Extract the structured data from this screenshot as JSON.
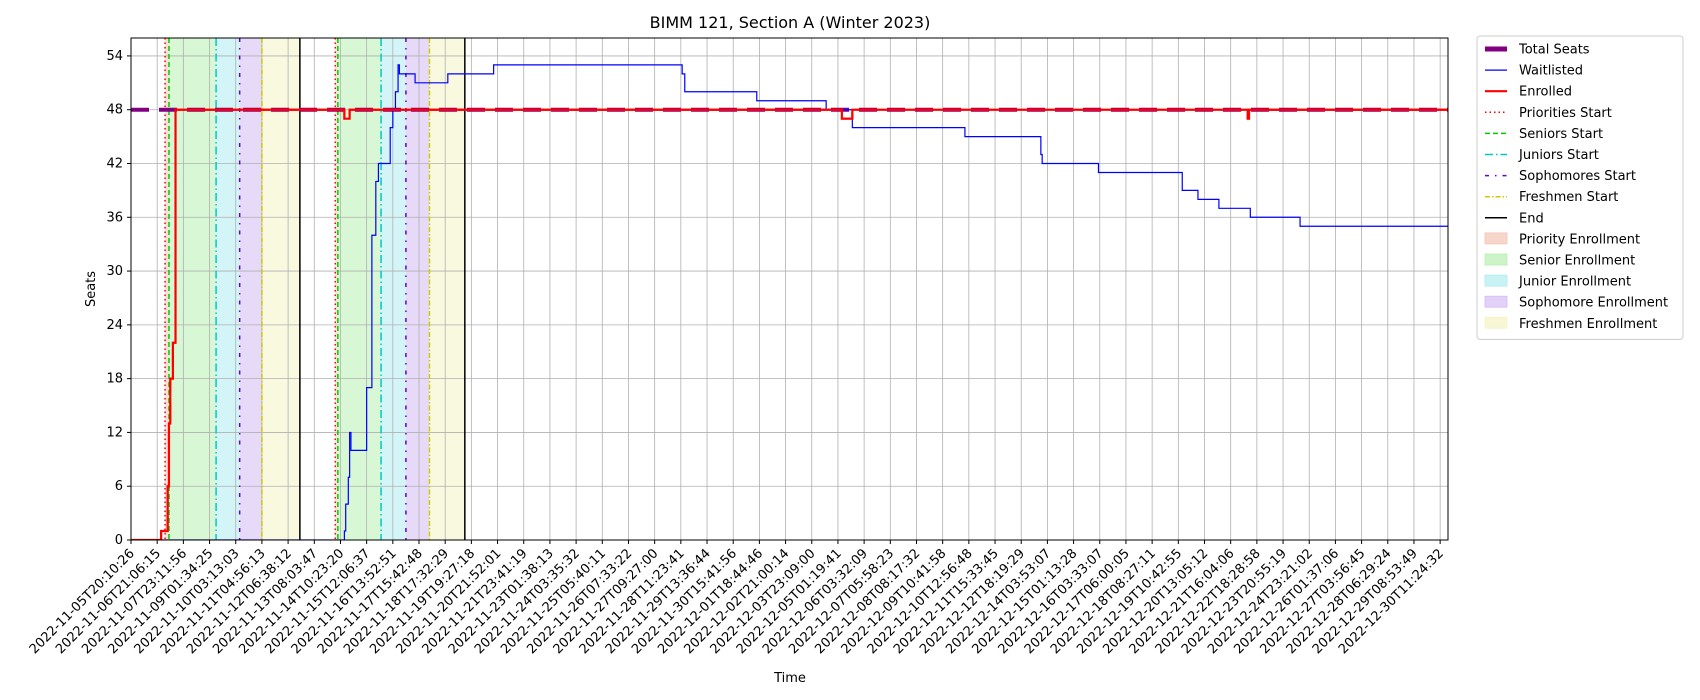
{
  "chart_data": {
    "type": "line",
    "title": "BIMM 121, Section A (Winter 2023)",
    "xlabel": "Time",
    "ylabel": "Seats",
    "ylim": [
      0,
      56
    ],
    "yticks": [
      0,
      6,
      12,
      18,
      24,
      30,
      36,
      42,
      48,
      54
    ],
    "grid": true,
    "legend_position": "outside-upper-right",
    "xtick_labels": [
      "2022-11-05T20:10:26",
      "2022-11-06T21:06:15",
      "2022-11-07T23:11:56",
      "2022-11-09T01:34:25",
      "2022-11-10T03:13:03",
      "2022-11-11T04:56:13",
      "2022-11-12T06:38:12",
      "2022-11-13T08:03:47",
      "2022-11-14T10:23:20",
      "2022-11-15T12:06:37",
      "2022-11-16T13:52:51",
      "2022-11-17T15:42:48",
      "2022-11-18T17:32:29",
      "2022-11-19T19:27:18",
      "2022-11-20T21:52:01",
      "2022-11-21T23:41:19",
      "2022-11-23T01:38:13",
      "2022-11-24T03:35:32",
      "2022-11-25T05:40:11",
      "2022-11-26T07:33:22",
      "2022-11-27T09:27:00",
      "2022-11-28T11:23:41",
      "2022-11-29T13:36:44",
      "2022-11-30T15:41:56",
      "2022-12-01T18:44:46",
      "2022-12-02T21:00:14",
      "2022-12-03T23:09:00",
      "2022-12-05T01:19:41",
      "2022-12-06T03:32:09",
      "2022-12-07T05:58:23",
      "2022-12-08T08:17:32",
      "2022-12-09T10:41:58",
      "2022-12-10T12:56:48",
      "2022-12-11T15:33:45",
      "2022-12-12T18:19:29",
      "2022-12-14T03:53:07",
      "2022-12-15T01:13:28",
      "2022-12-16T03:33:07",
      "2022-12-17T06:00:05",
      "2022-12-18T08:27:11",
      "2022-12-19T10:42:55",
      "2022-12-20T13:05:12",
      "2022-12-21T16:04:06",
      "2022-12-22T18:28:58",
      "2022-12-23T20:55:19",
      "2022-12-24T23:21:02",
      "2022-12-26T01:37:06",
      "2022-12-27T03:56:45",
      "2022-12-28T06:29:24",
      "2022-12-29T08:53:49",
      "2022-12-30T11:24:32"
    ],
    "x_range": [
      0,
      50.3
    ],
    "series": [
      {
        "name": "Total Seats",
        "color": "#800080",
        "points": [
          [
            0,
            48
          ],
          [
            0.6,
            48
          ],
          [
            1.1,
            48
          ],
          [
            50.3,
            48
          ]
        ]
      },
      {
        "name": "Waitlisted",
        "color": "#0000ff",
        "points": [
          [
            0,
            0
          ],
          [
            8.1,
            0
          ],
          [
            8.15,
            1
          ],
          [
            8.2,
            4
          ],
          [
            8.3,
            7
          ],
          [
            8.35,
            12
          ],
          [
            8.4,
            10
          ],
          [
            8.85,
            10
          ],
          [
            9.0,
            17
          ],
          [
            9.2,
            34
          ],
          [
            9.35,
            40
          ],
          [
            9.45,
            42
          ],
          [
            9.8,
            42
          ],
          [
            9.9,
            46
          ],
          [
            10.0,
            48
          ],
          [
            10.1,
            50
          ],
          [
            10.2,
            53
          ],
          [
            10.25,
            52
          ],
          [
            10.8,
            52
          ],
          [
            10.85,
            51
          ],
          [
            12.0,
            51
          ],
          [
            12.1,
            52
          ],
          [
            13.8,
            52
          ],
          [
            13.85,
            53
          ],
          [
            21.0,
            53
          ],
          [
            21.05,
            52
          ],
          [
            21.15,
            50
          ],
          [
            23.8,
            50
          ],
          [
            23.9,
            49
          ],
          [
            26.5,
            49
          ],
          [
            26.55,
            48
          ],
          [
            27.5,
            48
          ],
          [
            27.55,
            46
          ],
          [
            31.8,
            46
          ],
          [
            31.85,
            45
          ],
          [
            34.7,
            45
          ],
          [
            34.75,
            43
          ],
          [
            34.8,
            42
          ],
          [
            36.9,
            42
          ],
          [
            36.95,
            41
          ],
          [
            40.1,
            41
          ],
          [
            40.15,
            39
          ],
          [
            40.7,
            39
          ],
          [
            40.75,
            38
          ],
          [
            41.5,
            38
          ],
          [
            41.55,
            37
          ],
          [
            42.7,
            37
          ],
          [
            42.75,
            36
          ],
          [
            44.6,
            36
          ],
          [
            44.65,
            35
          ],
          [
            50.3,
            35
          ]
        ]
      },
      {
        "name": "Enrolled",
        "color": "#ff0000",
        "points": [
          [
            0,
            0
          ],
          [
            1.1,
            0
          ],
          [
            1.15,
            1
          ],
          [
            1.35,
            1
          ],
          [
            1.4,
            6
          ],
          [
            1.45,
            13
          ],
          [
            1.5,
            18
          ],
          [
            1.6,
            22
          ],
          [
            1.7,
            48
          ],
          [
            7.5,
            48
          ],
          [
            8.1,
            48
          ],
          [
            8.15,
            47
          ],
          [
            8.3,
            47
          ],
          [
            8.35,
            48
          ],
          [
            27.1,
            48
          ],
          [
            27.15,
            47
          ],
          [
            27.5,
            47
          ],
          [
            27.55,
            48
          ],
          [
            42.6,
            48
          ],
          [
            42.65,
            47
          ],
          [
            42.7,
            48
          ],
          [
            50.3,
            48
          ]
        ]
      }
    ],
    "markers": [
      {
        "name": "Priorities Start",
        "color": "#ff0000",
        "x": [
          1.3,
          7.8
        ]
      },
      {
        "name": "Seniors Start",
        "color": "#00cc00",
        "x": [
          1.45,
          7.9
        ]
      },
      {
        "name": "Juniors Start",
        "color": "#00c8c8",
        "x": [
          3.25,
          9.55
        ]
      },
      {
        "name": "Sophomores Start",
        "color": "#6600cc",
        "x": [
          4.15,
          10.5
        ]
      },
      {
        "name": "Freshmen Start",
        "color": "#cccc00",
        "x": [
          5.0,
          11.4
        ]
      },
      {
        "name": "End",
        "color": "#000000",
        "x": [
          6.45,
          12.75
        ]
      }
    ],
    "regions": [
      {
        "name": "Priority Enrollment",
        "color": "#f4c4b4",
        "ranges": [
          [
            1.3,
            1.45
          ],
          [
            7.8,
            7.9
          ]
        ]
      },
      {
        "name": "Senior Enrollment",
        "color": "#b8f0b0",
        "ranges": [
          [
            1.45,
            3.25
          ],
          [
            7.9,
            9.55
          ]
        ]
      },
      {
        "name": "Junior Enrollment",
        "color": "#b0ecf0",
        "ranges": [
          [
            3.25,
            4.15
          ],
          [
            9.55,
            10.5
          ]
        ]
      },
      {
        "name": "Sophomore Enrollment",
        "color": "#d4bcf4",
        "ranges": [
          [
            4.15,
            5.0
          ],
          [
            10.5,
            11.4
          ]
        ]
      },
      {
        "name": "Freshmen Enrollment",
        "color": "#f4f4c4",
        "ranges": [
          [
            5.0,
            6.45
          ],
          [
            11.4,
            12.75
          ]
        ]
      }
    ],
    "legend": [
      {
        "label": "Total Seats",
        "kind": "line",
        "color": "#800080",
        "width": 5,
        "dash": "none"
      },
      {
        "label": "Waitlisted",
        "kind": "line",
        "color": "#0000ff",
        "width": 1.2,
        "dash": "none"
      },
      {
        "label": "Enrolled",
        "kind": "line",
        "color": "#ff0000",
        "width": 2.2,
        "dash": "none"
      },
      {
        "label": "Priorities Start",
        "kind": "line",
        "color": "#ff0000",
        "width": 1.5,
        "dash": "1.5,3"
      },
      {
        "label": "Seniors Start",
        "kind": "line",
        "color": "#00cc00",
        "width": 1.5,
        "dash": "5,3"
      },
      {
        "label": "Juniors Start",
        "kind": "line",
        "color": "#00c8c8",
        "width": 1.5,
        "dash": "8,3,1.5,3"
      },
      {
        "label": "Sophomores Start",
        "kind": "line",
        "color": "#6600cc",
        "width": 1.5,
        "dash": "4,6,1.5,6"
      },
      {
        "label": "Freshmen Start",
        "kind": "line",
        "color": "#cccc00",
        "width": 1.5,
        "dash": "5,2,1.5,2"
      },
      {
        "label": "End",
        "kind": "line",
        "color": "#000000",
        "width": 1.5,
        "dash": "none"
      },
      {
        "label": "Priority Enrollment",
        "kind": "patch",
        "color": "#f4c4b4"
      },
      {
        "label": "Senior Enrollment",
        "kind": "patch",
        "color": "#b8f0b0"
      },
      {
        "label": "Junior Enrollment",
        "kind": "patch",
        "color": "#b0ecf0"
      },
      {
        "label": "Sophomore Enrollment",
        "kind": "patch",
        "color": "#d4bcf4"
      },
      {
        "label": "Freshmen Enrollment",
        "kind": "patch",
        "color": "#f4f4c4"
      }
    ]
  }
}
